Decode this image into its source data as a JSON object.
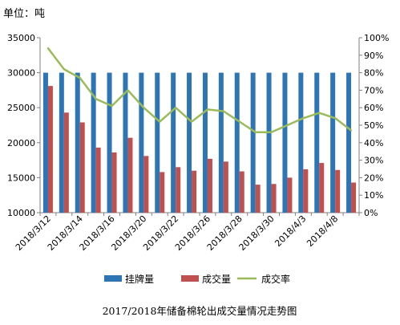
{
  "unit_label": "单位：吨",
  "caption": "2017/2018年储备棉轮出成交量情况走势图",
  "chart_data": {
    "type": "bar",
    "categories": [
      "2018/3/12",
      "2018/3/13",
      "2018/3/14",
      "2018/3/15",
      "2018/3/16",
      "2018/3/19",
      "2018/3/20",
      "2018/3/21",
      "2018/3/22",
      "2018/3/23",
      "2018/3/26",
      "2018/3/27",
      "2018/3/28",
      "2018/3/29",
      "2018/3/30",
      "2018/4/2",
      "2018/4/3",
      "2018/4/4",
      "2018/4/8",
      "2018/4/9"
    ],
    "x_tick_labels": [
      "2018/3/12",
      "2018/3/14",
      "2018/3/16",
      "2018/3/20",
      "2018/3/22",
      "2018/3/26",
      "2018/3/28",
      "2018/3/30",
      "2018/4/3",
      "2018/4/8"
    ],
    "x_tick_indices": [
      0,
      2,
      4,
      6,
      8,
      10,
      12,
      14,
      16,
      18
    ],
    "series": [
      {
        "name": "挂牌量",
        "axis": "left",
        "kind": "bar",
        "color": "#2e75b6",
        "values": [
          30000,
          30000,
          30000,
          30000,
          30000,
          30000,
          30000,
          30000,
          30000,
          30000,
          30000,
          30000,
          30000,
          30000,
          30000,
          30000,
          30000,
          30000,
          30000,
          30000
        ]
      },
      {
        "name": "成交量",
        "axis": "left",
        "kind": "bar",
        "color": "#c0504d",
        "values": [
          28100,
          24300,
          22900,
          19300,
          18600,
          20700,
          18100,
          15800,
          16500,
          16000,
          17700,
          17300,
          15900,
          14000,
          14100,
          15000,
          16200,
          17100,
          16100,
          14300
        ]
      },
      {
        "name": "成交率",
        "axis": "right",
        "kind": "line",
        "color": "#9bbb59",
        "values": [
          0.94,
          0.82,
          0.77,
          0.65,
          0.61,
          0.7,
          0.6,
          0.52,
          0.6,
          0.52,
          0.59,
          0.58,
          0.52,
          0.46,
          0.46,
          0.5,
          0.54,
          0.57,
          0.54,
          0.47
        ]
      }
    ],
    "y_left": {
      "min": 10000,
      "max": 35000,
      "step": 5000,
      "ticks": [
        "10000",
        "15000",
        "20000",
        "25000",
        "30000",
        "35000"
      ]
    },
    "y_right": {
      "min": 0,
      "max": 1,
      "step": 0.1,
      "ticks": [
        "0%",
        "10%",
        "20%",
        "30%",
        "40%",
        "50%",
        "60%",
        "70%",
        "80%",
        "90%",
        "100%"
      ]
    },
    "grid": false,
    "legend_position": "bottom"
  }
}
